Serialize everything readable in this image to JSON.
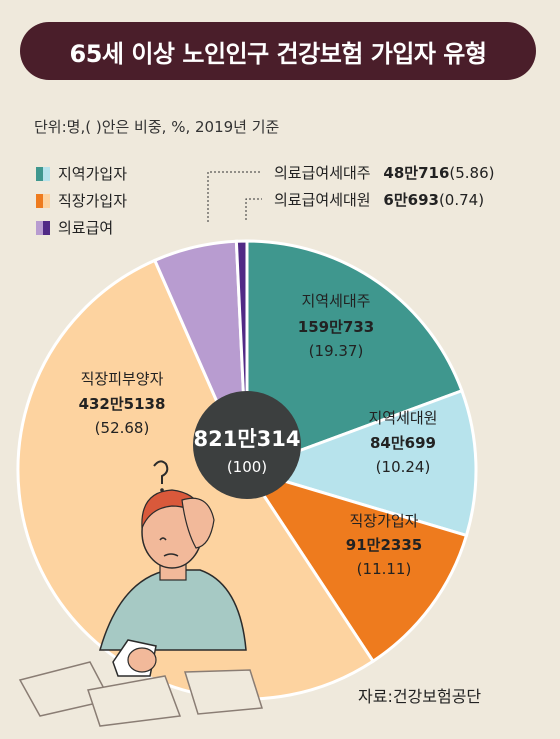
{
  "header": {
    "title": "65세 이상 노인인구 건강보험 가입자 유형"
  },
  "unit_note": "단위:명,( )안은 비중, %, 2019년 기준",
  "legend": [
    {
      "label": "지역가입자",
      "colors": [
        "#3f978e",
        "#b7e3ec"
      ]
    },
    {
      "label": "직장가입자",
      "colors": [
        "#ee7b1e",
        "#fdd3a0"
      ]
    },
    {
      "label": "의료급여",
      "colors": [
        "#b89cd0",
        "#512a86"
      ]
    }
  ],
  "callouts": [
    {
      "label": "의료급여세대주",
      "value": "48만716",
      "share": "(5.86)"
    },
    {
      "label": "의료급여세대원",
      "value": "6만693",
      "share": "(0.74)"
    }
  ],
  "center": {
    "value": "821만314",
    "share": "(100)"
  },
  "source": "자료:건강보험공단",
  "chart_data": {
    "type": "pie",
    "unit": "명",
    "year": "2019",
    "total": "821만314",
    "slices": [
      {
        "label": "지역세대주",
        "value": 1590733,
        "value_text": "159만733",
        "percent": 19.37,
        "percent_text": "(19.37)",
        "color": "#3f978e"
      },
      {
        "label": "지역세대원",
        "value": 840699,
        "value_text": "84만699",
        "percent": 10.24,
        "percent_text": "(10.24)",
        "color": "#b7e3ec"
      },
      {
        "label": "직장가입자",
        "value": 912335,
        "value_text": "91만2335",
        "percent": 11.11,
        "percent_text": "(11.11)",
        "color": "#ee7b1e"
      },
      {
        "label": "직장피부양자",
        "value": 4325138,
        "value_text": "432만5138",
        "percent": 52.68,
        "percent_text": "(52.68)",
        "color": "#fdd3a0"
      },
      {
        "label": "의료급여세대주",
        "value": 480716,
        "value_text": "48만716",
        "percent": 5.86,
        "percent_text": "(5.86)",
        "color": "#b89cd0"
      },
      {
        "label": "의료급여세대원",
        "value": 60693,
        "value_text": "6만693",
        "percent": 0.74,
        "percent_text": "(0.74)",
        "color": "#512a86"
      }
    ]
  }
}
